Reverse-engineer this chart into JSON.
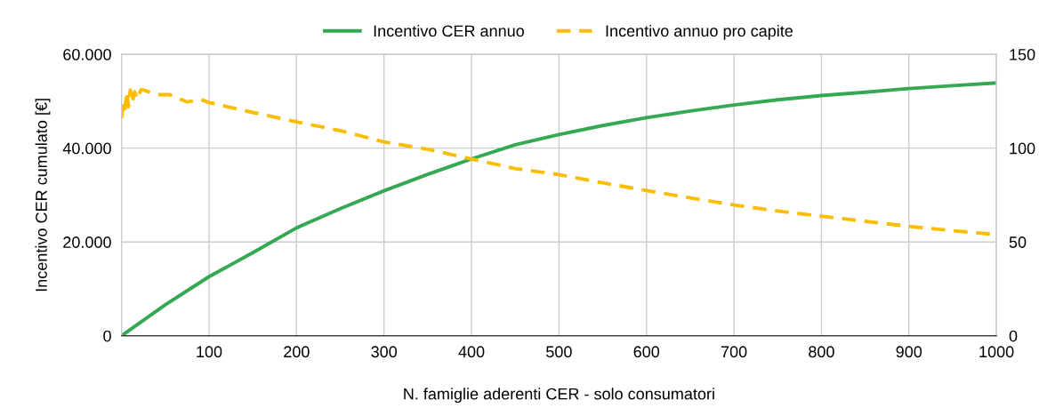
{
  "chart_data": {
    "type": "line",
    "xlabel": "N. famiglie aderenti CER - solo consumatori",
    "ylabel": "Incentivo CER cumulato [€]",
    "xlim": [
      0,
      1000
    ],
    "xticks": [
      100,
      200,
      300,
      400,
      500,
      600,
      700,
      800,
      900,
      1000
    ],
    "ylim": [
      0,
      60000
    ],
    "yticks": [
      {
        "value": 0,
        "label": "0"
      },
      {
        "value": 20000,
        "label": "20.000"
      },
      {
        "value": 40000,
        "label": "40.000"
      },
      {
        "value": 60000,
        "label": "60.000"
      }
    ],
    "y2lim": [
      0,
      150
    ],
    "y2ticks": [
      0,
      50,
      100,
      150
    ],
    "grid": true,
    "legend": "top",
    "marker": "none",
    "series": [
      {
        "name": "Incentivo CER annuo",
        "color": "#34a853",
        "line_style": "solid",
        "x": [
          0,
          50,
          100,
          150,
          200,
          250,
          300,
          350,
          400,
          450,
          500,
          550,
          600,
          650,
          700,
          750,
          800,
          850,
          900,
          950,
          1000
        ],
        "values": [
          0,
          6600,
          12600,
          17700,
          23000,
          27100,
          30900,
          34400,
          37700,
          40700,
          42900,
          44800,
          46500,
          47900,
          49200,
          50300,
          51200,
          51900,
          52700,
          53300,
          53900
        ]
      },
      {
        "name": "Incentivo annuo pro capite",
        "color": "#fbbc04",
        "line_style": "dashed",
        "axis": "y2",
        "x": [
          0,
          2,
          4,
          6,
          8,
          10,
          12,
          15,
          18,
          22,
          25,
          40,
          55,
          75,
          90,
          100,
          150,
          200,
          250,
          300,
          350,
          400,
          450,
          500,
          550,
          600,
          650,
          700,
          750,
          800,
          850,
          900,
          950,
          1000
        ],
        "values": [
          116,
          125,
          121,
          130,
          122,
          131,
          124,
          130,
          126,
          131,
          131,
          128.5,
          128.5,
          124.6,
          126,
          124.3,
          119,
          114,
          109.3,
          103.3,
          99.4,
          94.2,
          89.1,
          85.9,
          81.5,
          77.4,
          73.5,
          69.7,
          66.5,
          63.7,
          61,
          58.3,
          56,
          53.9
        ]
      }
    ]
  }
}
